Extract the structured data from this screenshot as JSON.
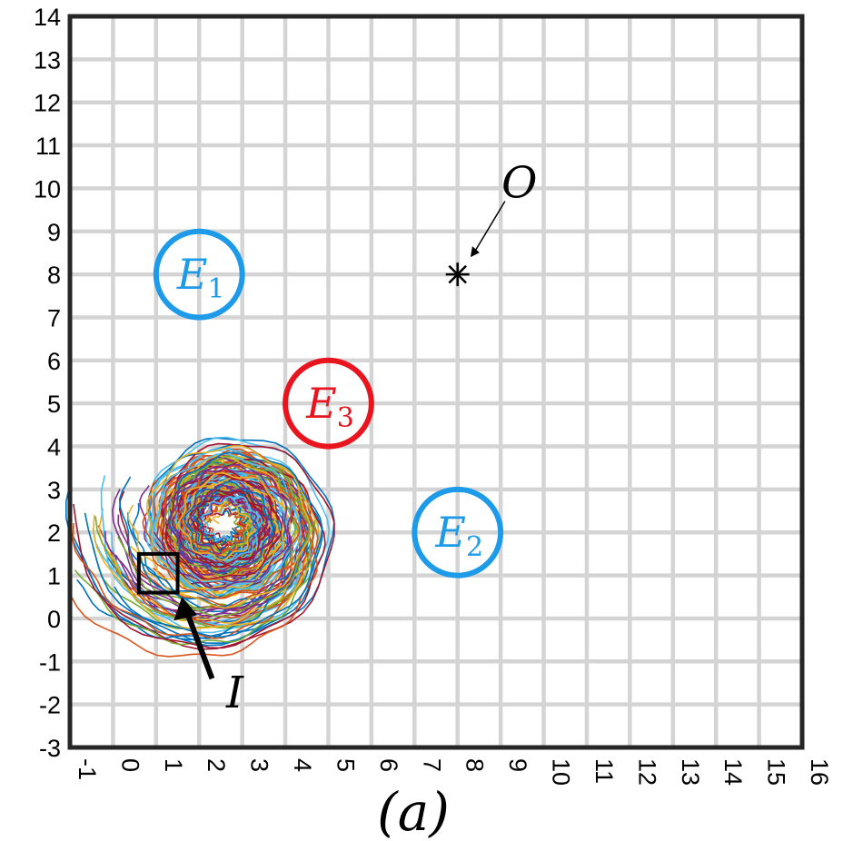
{
  "chart_data": {
    "type": "line",
    "panel_label": "(a)",
    "xlim": [
      -1,
      16
    ],
    "ylim": [
      -3,
      14
    ],
    "x_ticks": [
      -1,
      0,
      1,
      2,
      3,
      4,
      5,
      6,
      7,
      8,
      9,
      10,
      11,
      12,
      13,
      14,
      15,
      16
    ],
    "y_ticks": [
      -3,
      -2,
      -1,
      0,
      1,
      2,
      3,
      4,
      5,
      6,
      7,
      8,
      9,
      10,
      11,
      12,
      13,
      14
    ],
    "grid": true,
    "regions": [
      {
        "label": "E",
        "subscript": "1",
        "cx": 2,
        "cy": 8,
        "r": 1.0,
        "color": "#1e9be8"
      },
      {
        "label": "E",
        "subscript": "2",
        "cx": 8,
        "cy": 2,
        "r": 1.0,
        "color": "#1e9be8"
      },
      {
        "label": "E",
        "subscript": "3",
        "cx": 5,
        "cy": 5,
        "r": 1.0,
        "color": "#e8141e"
      }
    ],
    "initial_set": {
      "label": "I",
      "x0": 0.6,
      "x1": 1.5,
      "y0": 0.6,
      "y1": 1.5,
      "arrow_from": [
        2.3,
        -1.4
      ],
      "arrow_to": [
        1.6,
        0.5
      ]
    },
    "target_point": {
      "label": "O",
      "x": 8,
      "y": 8,
      "marker": "asterisk",
      "arrow_from": [
        9.1,
        9.7
      ],
      "arrow_to": [
        8.3,
        8.4
      ]
    },
    "trajectory_bundle": {
      "count": 60,
      "spiral_center": [
        2.6,
        2.2
      ],
      "start_x_range": [
        -1.0,
        1.8
      ],
      "start_y_range": [
        0.4,
        3.4
      ],
      "outer_radius_max": 1.9,
      "colors": [
        "#0072bd",
        "#d95319",
        "#edb120",
        "#7e2f8e",
        "#77ac30",
        "#4dbeee",
        "#a2142f"
      ]
    }
  }
}
